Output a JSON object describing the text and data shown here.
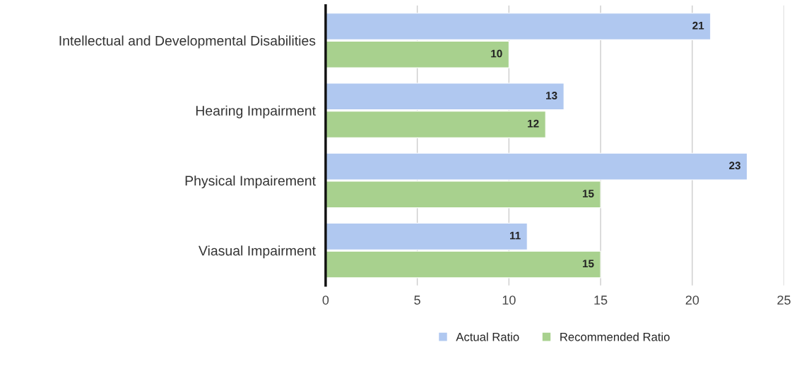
{
  "chart_data": {
    "type": "bar",
    "orientation": "horizontal",
    "categories": [
      "Intellectual and Developmental Disabilities",
      "Hearing Impairment",
      "Physical Impairement",
      "Viasual Impairment"
    ],
    "series": [
      {
        "name": "Actual Ratio",
        "color": "#b0c8f0",
        "values": [
          21,
          13,
          23,
          11
        ]
      },
      {
        "name": "Recommended Ratio",
        "color": "#a8d18e",
        "values": [
          10,
          12,
          15,
          15
        ]
      }
    ],
    "xlim": [
      0,
      25
    ],
    "xticks": [
      0,
      5,
      10,
      15,
      20,
      25
    ],
    "grid": "x",
    "legend": "bottom",
    "data_labels": true
  }
}
